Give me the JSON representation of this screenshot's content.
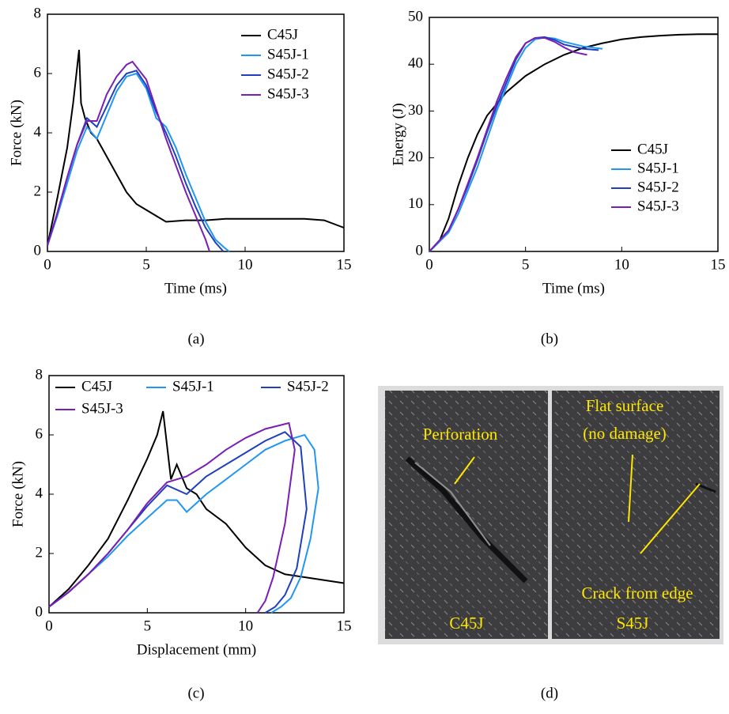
{
  "chart_data": [
    {
      "type": "line",
      "caption": "(a)",
      "xlabel": "Time (ms)",
      "ylabel": "Force (kN)",
      "xlim": [
        0,
        15
      ],
      "xticks": [
        0,
        5,
        10,
        15
      ],
      "ylim": [
        0,
        8
      ],
      "yticks": [
        0,
        2,
        4,
        6,
        8
      ],
      "grid": false,
      "legend": "upper right",
      "series": [
        {
          "name": "C45J",
          "color": "#000000",
          "x": [
            0,
            0.5,
            1,
            1.3,
            1.6,
            1.7,
            1.9,
            2.2,
            2.5,
            3,
            3.5,
            4,
            4.5,
            5,
            5.5,
            6,
            7,
            8,
            9,
            10,
            11,
            12,
            13,
            14,
            15
          ],
          "values": [
            0.2,
            1.8,
            3.5,
            5.0,
            6.8,
            5.0,
            4.5,
            4.0,
            3.8,
            3.2,
            2.6,
            2.0,
            1.6,
            1.4,
            1.2,
            1.0,
            1.05,
            1.05,
            1.1,
            1.1,
            1.1,
            1.1,
            1.1,
            1.05,
            0.8
          ]
        },
        {
          "name": "S45J-1",
          "color": "#2196f3",
          "x": [
            0,
            0.5,
            1,
            1.5,
            2,
            2.5,
            3,
            3.5,
            4,
            4.5,
            5,
            5.5,
            6,
            6.5,
            7,
            7.5,
            8,
            8.5,
            9,
            9.2
          ],
          "values": [
            0.2,
            1.2,
            2.3,
            3.4,
            4.2,
            3.8,
            4.6,
            5.4,
            5.9,
            6.0,
            5.5,
            4.5,
            4.2,
            3.5,
            2.6,
            1.8,
            1.0,
            0.4,
            0.1,
            0
          ]
        },
        {
          "name": "S45J-2",
          "color": "#1f3fbf",
          "x": [
            0,
            0.5,
            1,
            1.5,
            2,
            2.5,
            3,
            3.5,
            4,
            4.5,
            5,
            5.5,
            6,
            6.5,
            7,
            7.5,
            8,
            8.5,
            8.9
          ],
          "values": [
            0.2,
            1.3,
            2.5,
            3.6,
            4.5,
            4.2,
            4.9,
            5.6,
            6.0,
            6.1,
            5.6,
            4.7,
            4.0,
            3.2,
            2.3,
            1.5,
            0.8,
            0.3,
            0
          ]
        },
        {
          "name": "S45J-3",
          "color": "#7a1fb5",
          "x": [
            0,
            0.5,
            1,
            1.5,
            2,
            2.5,
            3,
            3.5,
            4,
            4.3,
            5,
            5.5,
            6,
            6.5,
            7,
            7.5,
            8,
            8.2
          ],
          "values": [
            0.2,
            1.3,
            2.5,
            3.6,
            4.4,
            4.4,
            5.3,
            5.9,
            6.3,
            6.4,
            5.8,
            4.8,
            3.8,
            2.9,
            2.0,
            1.2,
            0.4,
            0
          ]
        }
      ]
    },
    {
      "type": "line",
      "caption": "(b)",
      "xlabel": "Time (ms)",
      "ylabel": "Energy (J)",
      "xlim": [
        0,
        15
      ],
      "xticks": [
        0,
        5,
        10,
        15
      ],
      "ylim": [
        0,
        50
      ],
      "yticks": [
        0,
        10,
        20,
        30,
        40,
        50
      ],
      "grid": false,
      "legend": "lower right",
      "series": [
        {
          "name": "C45J",
          "color": "#000000",
          "x": [
            0,
            0.5,
            1,
            1.5,
            2,
            2.5,
            3,
            4,
            5,
            6,
            7,
            8,
            9,
            10,
            11,
            12,
            13,
            14,
            15
          ],
          "values": [
            0,
            2,
            7,
            14,
            20,
            25,
            29,
            34,
            37.5,
            40,
            42,
            43.5,
            44.5,
            45.3,
            45.8,
            46.1,
            46.3,
            46.4,
            46.4
          ]
        },
        {
          "name": "S45J-1",
          "color": "#2196f3",
          "x": [
            0,
            1,
            1.5,
            2,
            2.5,
            3,
            3.5,
            4,
            4.5,
            5,
            5.5,
            6,
            6.5,
            7,
            8,
            9
          ],
          "values": [
            0,
            4,
            8,
            13,
            18,
            24,
            30,
            35,
            40,
            43.5,
            45.3,
            45.7,
            45.5,
            44.8,
            43.8,
            43.3
          ]
        },
        {
          "name": "S45J-2",
          "color": "#1f3fbf",
          "x": [
            0,
            1,
            1.5,
            2,
            2.5,
            3,
            3.5,
            4,
            4.5,
            5,
            5.5,
            6,
            6.5,
            7,
            8,
            8.8
          ],
          "values": [
            0,
            4.5,
            9,
            14,
            19.5,
            25.5,
            31,
            36,
            41,
            44.5,
            45.6,
            45.8,
            45.2,
            44.2,
            43.3,
            43.0
          ]
        },
        {
          "name": "S45J-3",
          "color": "#7a1fb5",
          "x": [
            0,
            1,
            1.5,
            2,
            2.5,
            3,
            3.5,
            4,
            4.5,
            5,
            5.5,
            6,
            6.5,
            7,
            7.5,
            8.2
          ],
          "values": [
            0,
            4.5,
            9,
            14.5,
            20,
            26,
            32,
            37,
            41.5,
            44.5,
            45.6,
            45.6,
            44.8,
            43.6,
            42.6,
            42.0
          ]
        }
      ]
    },
    {
      "type": "line",
      "caption": "(c)",
      "xlabel": "Displacement (mm)",
      "ylabel": "Force (kN)",
      "xlim": [
        0,
        15
      ],
      "xticks": [
        0,
        5,
        10,
        15
      ],
      "ylim": [
        0,
        8
      ],
      "yticks": [
        0,
        2,
        4,
        6,
        8
      ],
      "grid": false,
      "legend": "upper center",
      "series": [
        {
          "name": "C45J",
          "color": "#000000",
          "x": [
            0,
            1,
            2,
            3,
            4,
            5,
            5.5,
            5.8,
            6.2,
            6.5,
            7,
            7.5,
            8,
            9,
            10,
            11,
            12,
            13,
            14,
            15
          ],
          "values": [
            0.2,
            0.8,
            1.6,
            2.5,
            3.8,
            5.2,
            6.0,
            6.8,
            4.5,
            5.0,
            4.2,
            4.0,
            3.5,
            3.0,
            2.2,
            1.6,
            1.3,
            1.2,
            1.1,
            1.0
          ]
        },
        {
          "name": "S45J-1",
          "color": "#2196f3",
          "x": [
            0,
            1,
            2,
            3,
            4,
            5,
            6,
            6.5,
            7,
            8,
            9,
            10,
            11,
            12,
            13,
            13.5,
            13.7,
            13.3,
            12.8,
            12.3,
            11.8,
            11.3
          ],
          "values": [
            0.2,
            0.7,
            1.3,
            1.9,
            2.6,
            3.2,
            3.8,
            3.8,
            3.4,
            4.0,
            4.5,
            5.0,
            5.5,
            5.8,
            6.0,
            5.5,
            4.2,
            2.5,
            1.2,
            0.5,
            0.2,
            0
          ]
        },
        {
          "name": "S45J-2",
          "color": "#1f3fbf",
          "x": [
            0,
            1,
            2,
            3,
            4,
            5,
            6,
            7,
            8,
            9,
            10,
            11,
            12,
            12.8,
            13.1,
            12.6,
            12.0,
            11.5,
            11.0
          ],
          "values": [
            0.2,
            0.7,
            1.3,
            2.0,
            2.8,
            3.6,
            4.3,
            4.0,
            4.6,
            5.0,
            5.4,
            5.8,
            6.1,
            5.6,
            3.5,
            1.5,
            0.6,
            0.2,
            0
          ]
        },
        {
          "name": "S45J-3",
          "color": "#7a1fb5",
          "x": [
            0,
            1,
            2,
            3,
            4,
            5,
            6,
            7,
            8,
            9,
            10,
            11,
            12.2,
            12.5,
            12.0,
            11.4,
            11.0,
            10.6
          ],
          "values": [
            0.2,
            0.7,
            1.3,
            2.0,
            2.8,
            3.7,
            4.4,
            4.6,
            5.0,
            5.5,
            5.9,
            6.2,
            6.4,
            5.5,
            3.0,
            1.2,
            0.4,
            0
          ]
        }
      ]
    }
  ],
  "photo": {
    "caption": "(d)",
    "specimens": [
      "C45J",
      "S45J"
    ],
    "annotations": [
      "Perforation",
      "Flat surface",
      "(no damage)",
      "Crack from edge"
    ]
  }
}
